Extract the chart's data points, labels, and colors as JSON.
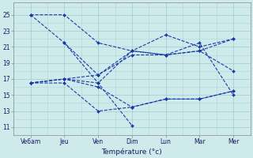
{
  "background_color": "#ceeaea",
  "line_color": "#1a3aaa",
  "grid_color": "#a0cccc",
  "xlabel": "Température (°c)",
  "xtick_labels": [
    "Ve6am",
    "Jeu",
    "Ven",
    "Dim",
    "Lun",
    "Mar",
    "Mer"
  ],
  "xtick_positions": [
    0,
    1,
    2,
    3,
    4,
    5,
    6
  ],
  "ytick_values": [
    11,
    13,
    15,
    17,
    19,
    21,
    23,
    25
  ],
  "ylim": [
    10.0,
    26.5
  ],
  "xlim": [
    -0.15,
    6.4
  ],
  "lines": [
    {
      "x": [
        0,
        1,
        2,
        3,
        4,
        5,
        6
      ],
      "y": [
        25.0,
        25.0,
        21.5,
        20.5,
        20.0,
        20.5,
        22.0
      ]
    },
    {
      "x": [
        0,
        1,
        2,
        3,
        4,
        5,
        6
      ],
      "y": [
        25.0,
        21.5,
        17.5,
        20.5,
        22.5,
        21.0,
        22.0
      ]
    },
    {
      "x": [
        0,
        1,
        2,
        3,
        4,
        5,
        6
      ],
      "y": [
        16.5,
        17.0,
        17.5,
        20.0,
        20.0,
        20.5,
        18.0
      ]
    },
    {
      "x": [
        0,
        1,
        2,
        3,
        4,
        5,
        6
      ],
      "y": [
        16.5,
        17.0,
        16.5,
        20.5,
        20.0,
        21.5,
        15.0
      ]
    },
    {
      "x": [
        0,
        1,
        2,
        3,
        4,
        5,
        6
      ],
      "y": [
        16.5,
        17.0,
        16.0,
        13.5,
        14.5,
        14.5,
        15.5
      ]
    },
    {
      "x": [
        0,
        1,
        2,
        3,
        4,
        5,
        6
      ],
      "y": [
        16.5,
        16.5,
        13.0,
        13.5,
        14.5,
        14.5,
        15.5
      ]
    },
    {
      "x": [
        1,
        2,
        3
      ],
      "y": [
        21.5,
        16.5,
        11.2
      ]
    }
  ]
}
